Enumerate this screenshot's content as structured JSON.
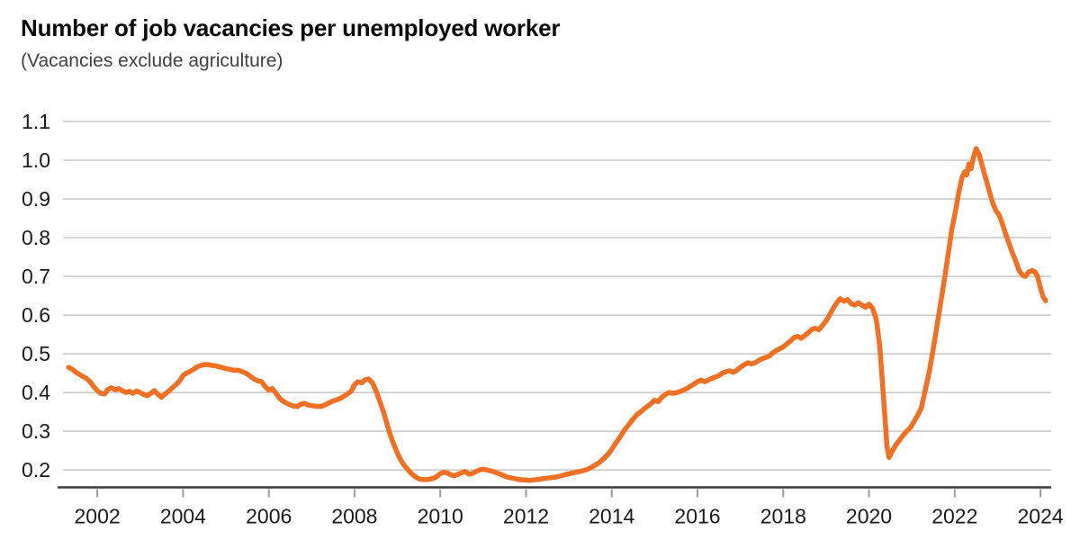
{
  "header": {
    "title": "Number of job vacancies per unemployed worker",
    "subtitle": "(Vacancies exclude agriculture)"
  },
  "colors": {
    "line": "#F36F21",
    "gridline": "#C7C7C7",
    "axis": "#3A3A3A",
    "tick": "#9A9A9A",
    "label_text": "#1A1A1A"
  },
  "chart_data": {
    "type": "line",
    "title": "Number of job vacancies per unemployed worker",
    "subtitle": "(Vacancies exclude agriculture)",
    "xlabel": "",
    "ylabel": "",
    "grid": "horizontal-only",
    "legend": "none",
    "x_domain": [
      2001.2,
      2024.25
    ],
    "x_ticks": [
      2002,
      2004,
      2006,
      2008,
      2010,
      2012,
      2014,
      2016,
      2018,
      2020,
      2022,
      2024
    ],
    "y_axis": {
      "ticks": [
        0.2,
        0.3,
        0.4,
        0.5,
        0.6,
        0.7,
        0.8,
        0.9,
        1.0,
        1.1
      ],
      "min_display": 0.155,
      "max": 1.1
    },
    "series": [
      {
        "name": "Job vacancies per unemployed worker",
        "color": "#F36F21",
        "points": [
          [
            2001.33,
            0.465
          ],
          [
            2001.42,
            0.46
          ],
          [
            2001.5,
            0.452
          ],
          [
            2001.58,
            0.447
          ],
          [
            2001.67,
            0.441
          ],
          [
            2001.75,
            0.436
          ],
          [
            2001.83,
            0.428
          ],
          [
            2001.92,
            0.415
          ],
          [
            2002.0,
            0.405
          ],
          [
            2002.08,
            0.398
          ],
          [
            2002.17,
            0.396
          ],
          [
            2002.25,
            0.408
          ],
          [
            2002.33,
            0.412
          ],
          [
            2002.42,
            0.407
          ],
          [
            2002.5,
            0.41
          ],
          [
            2002.58,
            0.405
          ],
          [
            2002.67,
            0.4
          ],
          [
            2002.75,
            0.403
          ],
          [
            2002.83,
            0.398
          ],
          [
            2002.92,
            0.404
          ],
          [
            2003.0,
            0.4
          ],
          [
            2003.08,
            0.395
          ],
          [
            2003.17,
            0.392
          ],
          [
            2003.25,
            0.398
          ],
          [
            2003.33,
            0.405
          ],
          [
            2003.42,
            0.394
          ],
          [
            2003.5,
            0.388
          ],
          [
            2003.58,
            0.396
          ],
          [
            2003.67,
            0.404
          ],
          [
            2003.75,
            0.412
          ],
          [
            2003.83,
            0.42
          ],
          [
            2003.92,
            0.43
          ],
          [
            2004.0,
            0.444
          ],
          [
            2004.08,
            0.45
          ],
          [
            2004.17,
            0.455
          ],
          [
            2004.25,
            0.46
          ],
          [
            2004.33,
            0.466
          ],
          [
            2004.42,
            0.47
          ],
          [
            2004.5,
            0.472
          ],
          [
            2004.58,
            0.472
          ],
          [
            2004.67,
            0.47
          ],
          [
            2004.75,
            0.469
          ],
          [
            2004.83,
            0.467
          ],
          [
            2004.92,
            0.464
          ],
          [
            2005.0,
            0.462
          ],
          [
            2005.08,
            0.46
          ],
          [
            2005.17,
            0.458
          ],
          [
            2005.25,
            0.458
          ],
          [
            2005.33,
            0.456
          ],
          [
            2005.42,
            0.452
          ],
          [
            2005.5,
            0.448
          ],
          [
            2005.58,
            0.441
          ],
          [
            2005.67,
            0.434
          ],
          [
            2005.75,
            0.43
          ],
          [
            2005.83,
            0.428
          ],
          [
            2005.92,
            0.415
          ],
          [
            2006.0,
            0.406
          ],
          [
            2006.08,
            0.41
          ],
          [
            2006.17,
            0.398
          ],
          [
            2006.25,
            0.385
          ],
          [
            2006.33,
            0.378
          ],
          [
            2006.42,
            0.372
          ],
          [
            2006.5,
            0.368
          ],
          [
            2006.58,
            0.365
          ],
          [
            2006.67,
            0.364
          ],
          [
            2006.75,
            0.37
          ],
          [
            2006.83,
            0.372
          ],
          [
            2006.92,
            0.368
          ],
          [
            2007.0,
            0.366
          ],
          [
            2007.08,
            0.365
          ],
          [
            2007.17,
            0.364
          ],
          [
            2007.25,
            0.365
          ],
          [
            2007.33,
            0.369
          ],
          [
            2007.42,
            0.374
          ],
          [
            2007.5,
            0.378
          ],
          [
            2007.58,
            0.381
          ],
          [
            2007.67,
            0.385
          ],
          [
            2007.75,
            0.39
          ],
          [
            2007.83,
            0.396
          ],
          [
            2007.92,
            0.403
          ],
          [
            2008.0,
            0.42
          ],
          [
            2008.08,
            0.428
          ],
          [
            2008.17,
            0.425
          ],
          [
            2008.25,
            0.433
          ],
          [
            2008.33,
            0.435
          ],
          [
            2008.42,
            0.425
          ],
          [
            2008.5,
            0.405
          ],
          [
            2008.58,
            0.38
          ],
          [
            2008.67,
            0.352
          ],
          [
            2008.75,
            0.322
          ],
          [
            2008.83,
            0.292
          ],
          [
            2008.92,
            0.265
          ],
          [
            2009.0,
            0.243
          ],
          [
            2009.08,
            0.225
          ],
          [
            2009.17,
            0.21
          ],
          [
            2009.25,
            0.2
          ],
          [
            2009.33,
            0.19
          ],
          [
            2009.42,
            0.182
          ],
          [
            2009.5,
            0.177
          ],
          [
            2009.58,
            0.175
          ],
          [
            2009.67,
            0.175
          ],
          [
            2009.75,
            0.176
          ],
          [
            2009.83,
            0.178
          ],
          [
            2009.92,
            0.183
          ],
          [
            2010.0,
            0.19
          ],
          [
            2010.08,
            0.194
          ],
          [
            2010.17,
            0.192
          ],
          [
            2010.25,
            0.187
          ],
          [
            2010.33,
            0.185
          ],
          [
            2010.42,
            0.189
          ],
          [
            2010.5,
            0.193
          ],
          [
            2010.58,
            0.196
          ],
          [
            2010.67,
            0.189
          ],
          [
            2010.75,
            0.191
          ],
          [
            2010.83,
            0.196
          ],
          [
            2010.92,
            0.2
          ],
          [
            2011.0,
            0.202
          ],
          [
            2011.08,
            0.2
          ],
          [
            2011.17,
            0.198
          ],
          [
            2011.25,
            0.195
          ],
          [
            2011.33,
            0.192
          ],
          [
            2011.42,
            0.188
          ],
          [
            2011.5,
            0.184
          ],
          [
            2011.58,
            0.181
          ],
          [
            2011.67,
            0.179
          ],
          [
            2011.75,
            0.177
          ],
          [
            2011.83,
            0.175
          ],
          [
            2011.92,
            0.174
          ],
          [
            2012.0,
            0.174
          ],
          [
            2012.08,
            0.173
          ],
          [
            2012.17,
            0.174
          ],
          [
            2012.25,
            0.175
          ],
          [
            2012.33,
            0.176
          ],
          [
            2012.42,
            0.178
          ],
          [
            2012.5,
            0.179
          ],
          [
            2012.58,
            0.18
          ],
          [
            2012.67,
            0.181
          ],
          [
            2012.75,
            0.183
          ],
          [
            2012.83,
            0.185
          ],
          [
            2012.92,
            0.188
          ],
          [
            2013.0,
            0.19
          ],
          [
            2013.08,
            0.192
          ],
          [
            2013.17,
            0.194
          ],
          [
            2013.25,
            0.196
          ],
          [
            2013.33,
            0.198
          ],
          [
            2013.42,
            0.201
          ],
          [
            2013.5,
            0.205
          ],
          [
            2013.58,
            0.21
          ],
          [
            2013.67,
            0.216
          ],
          [
            2013.75,
            0.223
          ],
          [
            2013.83,
            0.231
          ],
          [
            2013.92,
            0.241
          ],
          [
            2014.0,
            0.253
          ],
          [
            2014.08,
            0.267
          ],
          [
            2014.17,
            0.281
          ],
          [
            2014.25,
            0.295
          ],
          [
            2014.33,
            0.308
          ],
          [
            2014.42,
            0.32
          ],
          [
            2014.5,
            0.332
          ],
          [
            2014.58,
            0.342
          ],
          [
            2014.67,
            0.35
          ],
          [
            2014.75,
            0.357
          ],
          [
            2014.83,
            0.364
          ],
          [
            2014.92,
            0.372
          ],
          [
            2015.0,
            0.38
          ],
          [
            2015.08,
            0.376
          ],
          [
            2015.17,
            0.388
          ],
          [
            2015.25,
            0.395
          ],
          [
            2015.33,
            0.4
          ],
          [
            2015.42,
            0.398
          ],
          [
            2015.5,
            0.399
          ],
          [
            2015.58,
            0.402
          ],
          [
            2015.67,
            0.406
          ],
          [
            2015.75,
            0.41
          ],
          [
            2015.83,
            0.416
          ],
          [
            2015.92,
            0.422
          ],
          [
            2016.0,
            0.428
          ],
          [
            2016.08,
            0.432
          ],
          [
            2016.17,
            0.428
          ],
          [
            2016.25,
            0.432
          ],
          [
            2016.33,
            0.436
          ],
          [
            2016.42,
            0.44
          ],
          [
            2016.5,
            0.444
          ],
          [
            2016.58,
            0.45
          ],
          [
            2016.67,
            0.454
          ],
          [
            2016.75,
            0.456
          ],
          [
            2016.83,
            0.452
          ],
          [
            2016.92,
            0.458
          ],
          [
            2017.0,
            0.465
          ],
          [
            2017.08,
            0.471
          ],
          [
            2017.17,
            0.477
          ],
          [
            2017.25,
            0.474
          ],
          [
            2017.33,
            0.476
          ],
          [
            2017.42,
            0.482
          ],
          [
            2017.5,
            0.487
          ],
          [
            2017.58,
            0.49
          ],
          [
            2017.67,
            0.494
          ],
          [
            2017.75,
            0.502
          ],
          [
            2017.83,
            0.508
          ],
          [
            2017.92,
            0.513
          ],
          [
            2018.0,
            0.518
          ],
          [
            2018.08,
            0.525
          ],
          [
            2018.17,
            0.533
          ],
          [
            2018.25,
            0.542
          ],
          [
            2018.33,
            0.545
          ],
          [
            2018.42,
            0.54
          ],
          [
            2018.5,
            0.547
          ],
          [
            2018.58,
            0.554
          ],
          [
            2018.67,
            0.563
          ],
          [
            2018.75,
            0.566
          ],
          [
            2018.83,
            0.562
          ],
          [
            2018.92,
            0.574
          ],
          [
            2019.0,
            0.585
          ],
          [
            2019.08,
            0.6
          ],
          [
            2019.17,
            0.618
          ],
          [
            2019.25,
            0.632
          ],
          [
            2019.33,
            0.642
          ],
          [
            2019.42,
            0.636
          ],
          [
            2019.5,
            0.64
          ],
          [
            2019.58,
            0.63
          ],
          [
            2019.67,
            0.626
          ],
          [
            2019.75,
            0.632
          ],
          [
            2019.83,
            0.626
          ],
          [
            2019.92,
            0.62
          ],
          [
            2020.0,
            0.628
          ],
          [
            2020.08,
            0.618
          ],
          [
            2020.17,
            0.59
          ],
          [
            2020.25,
            0.52
          ],
          [
            2020.33,
            0.4
          ],
          [
            2020.42,
            0.26
          ],
          [
            2020.47,
            0.232
          ],
          [
            2020.55,
            0.25
          ],
          [
            2020.63,
            0.265
          ],
          [
            2020.72,
            0.278
          ],
          [
            2020.8,
            0.29
          ],
          [
            2020.88,
            0.3
          ],
          [
            2020.97,
            0.31
          ],
          [
            2021.05,
            0.325
          ],
          [
            2021.13,
            0.34
          ],
          [
            2021.22,
            0.36
          ],
          [
            2021.3,
            0.4
          ],
          [
            2021.4,
            0.45
          ],
          [
            2021.48,
            0.5
          ],
          [
            2021.57,
            0.56
          ],
          [
            2021.67,
            0.63
          ],
          [
            2021.77,
            0.7
          ],
          [
            2021.85,
            0.76
          ],
          [
            2021.93,
            0.82
          ],
          [
            2022.02,
            0.87
          ],
          [
            2022.1,
            0.92
          ],
          [
            2022.17,
            0.955
          ],
          [
            2022.23,
            0.97
          ],
          [
            2022.28,
            0.962
          ],
          [
            2022.33,
            0.99
          ],
          [
            2022.38,
            0.978
          ],
          [
            2022.43,
            1.005
          ],
          [
            2022.5,
            1.03
          ],
          [
            2022.57,
            1.015
          ],
          [
            2022.63,
            0.99
          ],
          [
            2022.7,
            0.962
          ],
          [
            2022.77,
            0.935
          ],
          [
            2022.83,
            0.91
          ],
          [
            2022.9,
            0.885
          ],
          [
            2022.97,
            0.868
          ],
          [
            2023.03,
            0.86
          ],
          [
            2023.1,
            0.84
          ],
          [
            2023.17,
            0.815
          ],
          [
            2023.25,
            0.79
          ],
          [
            2023.33,
            0.765
          ],
          [
            2023.42,
            0.74
          ],
          [
            2023.5,
            0.715
          ],
          [
            2023.58,
            0.703
          ],
          [
            2023.65,
            0.7
          ],
          [
            2023.73,
            0.712
          ],
          [
            2023.8,
            0.715
          ],
          [
            2023.87,
            0.712
          ],
          [
            2023.93,
            0.7
          ],
          [
            2024.0,
            0.67
          ],
          [
            2024.06,
            0.648
          ],
          [
            2024.12,
            0.637
          ]
        ]
      }
    ]
  }
}
